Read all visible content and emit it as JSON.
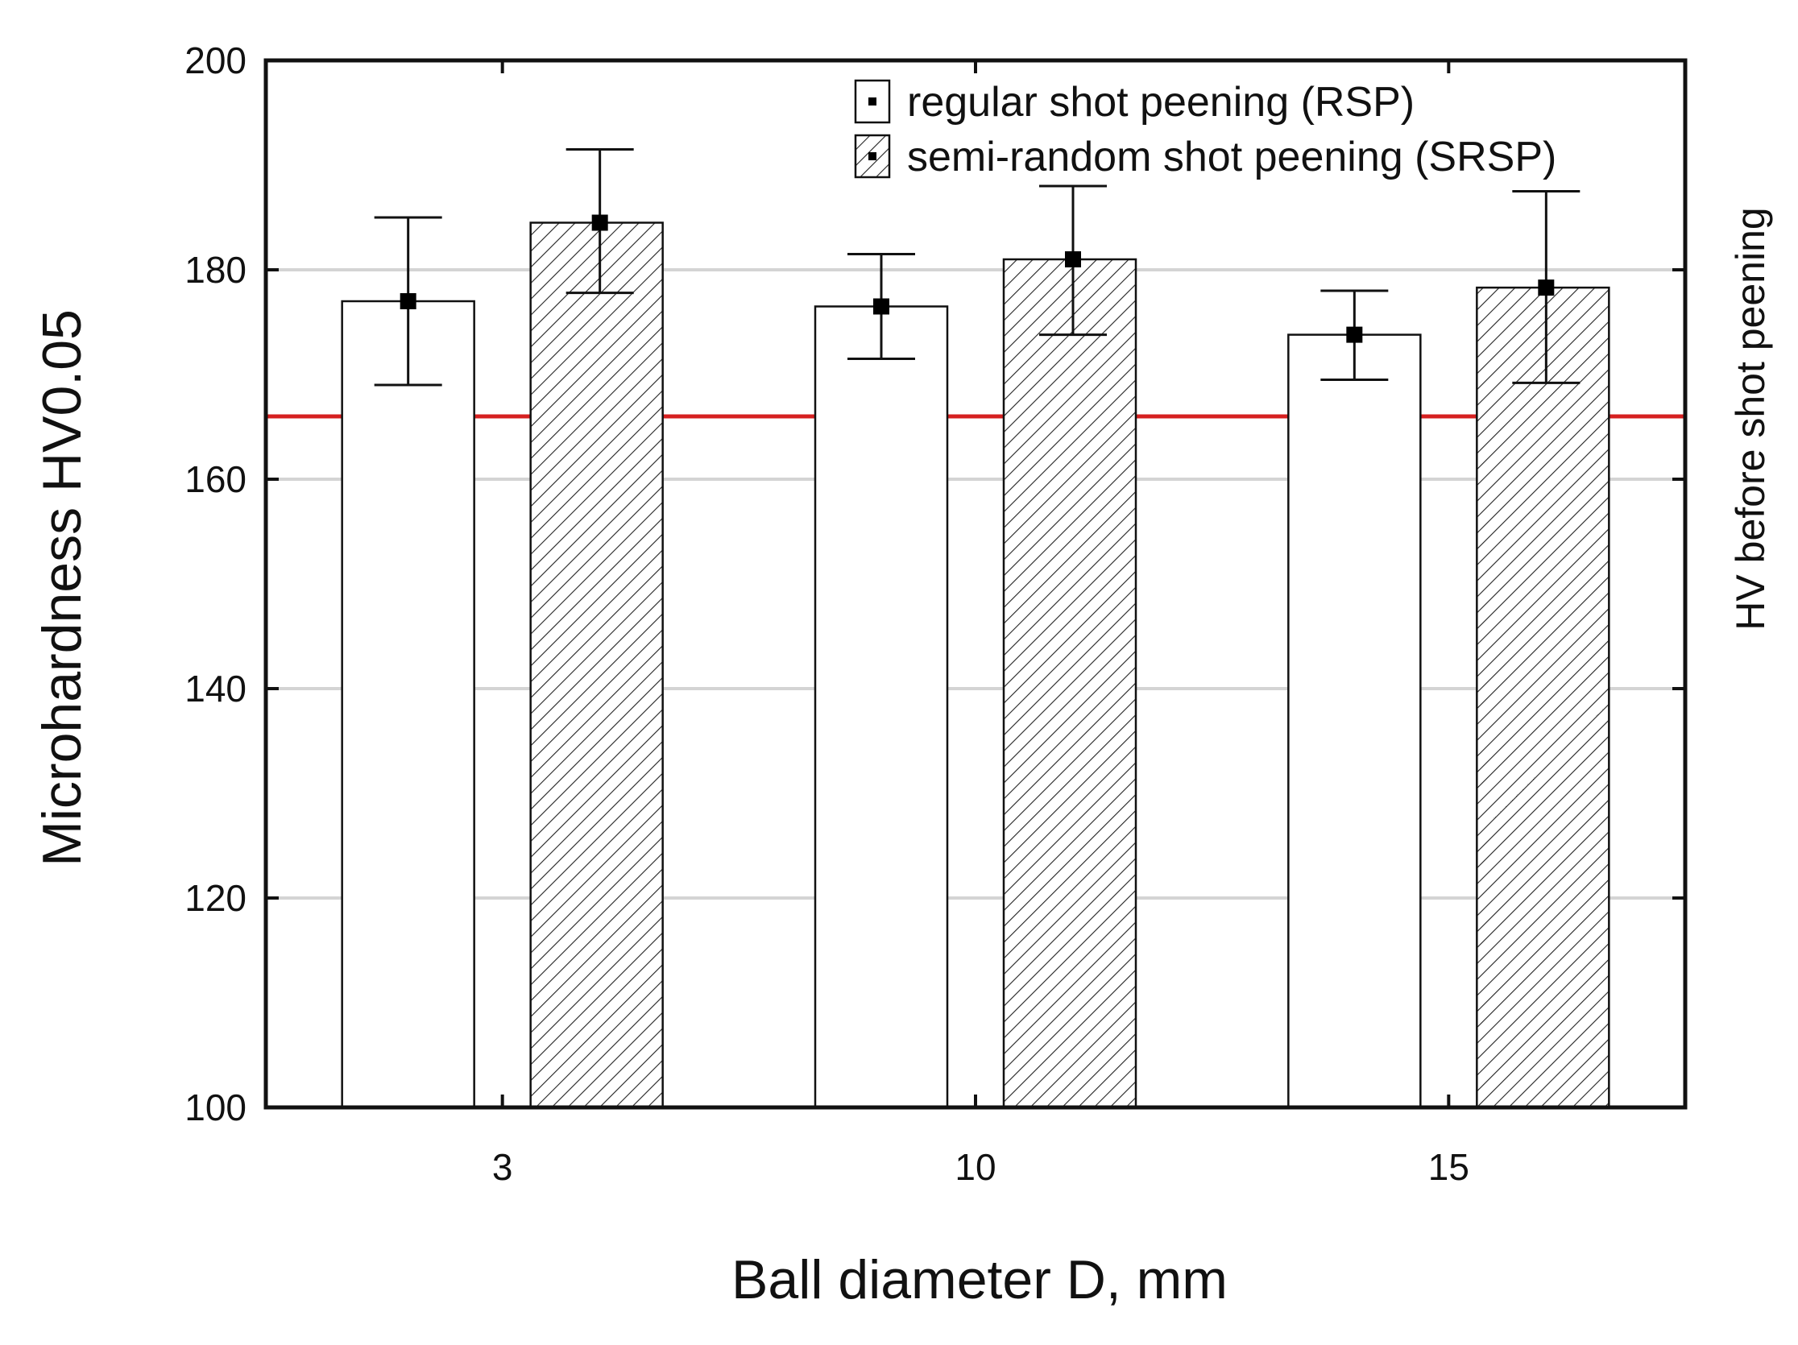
{
  "chart_data": {
    "type": "bar",
    "categories": [
      "3",
      "10",
      "15"
    ],
    "series": [
      {
        "name": "regular shot peening (RSP)",
        "pattern": "plain",
        "values": [
          177,
          176.5,
          173.8
        ],
        "err_low": [
          169,
          171.5,
          169.5
        ],
        "err_high": [
          185,
          181.5,
          178
        ]
      },
      {
        "name": "semi-random shot peening (SRSP)",
        "pattern": "hatched",
        "values": [
          184.5,
          181,
          178.3
        ],
        "err_low": [
          177.8,
          173.8,
          169.2
        ],
        "err_high": [
          191.5,
          188,
          187.5
        ]
      }
    ],
    "reference_line": {
      "label": "HV before shot peening",
      "value": 166,
      "color": "#d62020"
    },
    "xlabel": "Ball diameter D, mm",
    "ylabel": "Microhardness HV0.05",
    "ylim": [
      100,
      200
    ],
    "yticks": [
      100,
      120,
      140,
      160,
      180,
      200
    ],
    "grid": true,
    "legend_position": "top-right"
  }
}
